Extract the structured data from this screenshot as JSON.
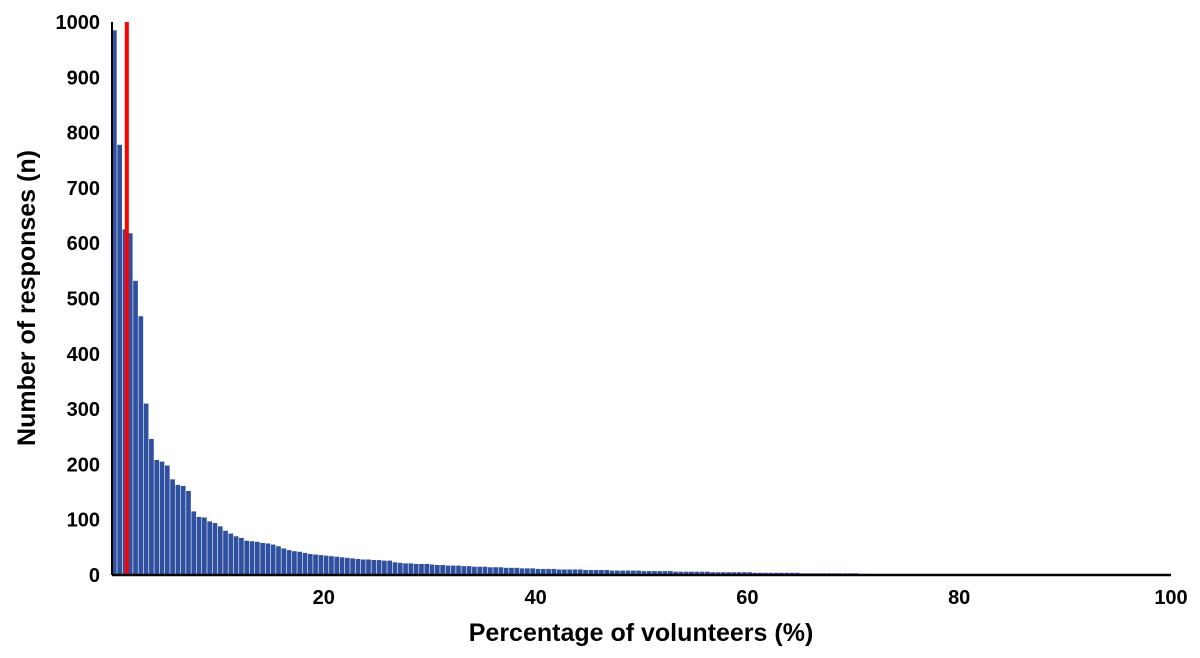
{
  "chart_data": {
    "type": "bar",
    "title": "",
    "xlabel": "Percentage of volunteers (%)",
    "ylabel": "Number of responses (n)",
    "xlim": [
      0,
      100
    ],
    "ylim": [
      0,
      1000
    ],
    "x_ticks": [
      20,
      40,
      60,
      80,
      100
    ],
    "y_ticks": [
      0,
      100,
      200,
      300,
      400,
      500,
      600,
      700,
      800,
      900,
      1000
    ],
    "grid": false,
    "legend": "none",
    "colors": {
      "bars": "#2f4f9f",
      "marker": "#ff0000",
      "axis": "#000000"
    },
    "series": [
      {
        "x": [
          0.25,
          0.75,
          1.25,
          1.75,
          2.25,
          2.75,
          3.25,
          3.75,
          4.25,
          4.75,
          5.25,
          5.75,
          6.25,
          6.75,
          7.25,
          7.75,
          8.25,
          8.75,
          9.25,
          9.75,
          10.25,
          10.75,
          11.25,
          11.75,
          12.25,
          12.75,
          13.25,
          13.75,
          14.25,
          14.75,
          15.25,
          15.75,
          16.25,
          16.75,
          17.25,
          17.75,
          18.25,
          18.75,
          19.25,
          19.75,
          20.25,
          20.75,
          21.25,
          21.75,
          22.25,
          22.75,
          23.25,
          23.75,
          24.25,
          24.75,
          25.25,
          25.75,
          26.25,
          26.75,
          27.25,
          27.75,
          28.25,
          28.75,
          29.25,
          29.75,
          30.25,
          30.75,
          31.25,
          31.75,
          32.25,
          32.75,
          33.25,
          33.75,
          34.25,
          34.75,
          35.25,
          35.75,
          36.25,
          36.75,
          37.25,
          37.75,
          38.25,
          38.75,
          39.25,
          39.75,
          40.25,
          40.75,
          41.25,
          41.75,
          42.25,
          42.75,
          43.25,
          43.75,
          44.25,
          44.75,
          45.25,
          45.75,
          46.25,
          46.75,
          47.25,
          47.75,
          48.25,
          48.75,
          49.25,
          49.75,
          50.25,
          50.75,
          51.25,
          51.75,
          52.25,
          52.75,
          53.25,
          53.75,
          54.25,
          54.75,
          55.25,
          55.75,
          56.25,
          56.75,
          57.25,
          57.75,
          58.25,
          58.75,
          59.25,
          59.75,
          60.25,
          60.75,
          61.25,
          61.75,
          62.25,
          62.75,
          63.25,
          63.75,
          64.25,
          64.75,
          65.25,
          65.75,
          66.25,
          66.75,
          67.25,
          67.75,
          68.25,
          68.75,
          69.25,
          69.75,
          70.25,
          70.75,
          71.25
        ],
        "values": [
          985,
          778,
          625,
          618,
          532,
          468,
          310,
          246,
          208,
          205,
          198,
          173,
          163,
          161,
          152,
          115,
          105,
          104,
          97,
          94,
          88,
          80,
          75,
          70,
          67,
          62,
          61,
          60,
          58,
          57,
          55,
          52,
          48,
          45,
          43,
          42,
          40,
          38,
          37,
          36,
          35,
          34,
          33,
          32,
          31,
          30,
          29,
          28,
          28,
          27,
          27,
          26,
          26,
          23,
          22,
          21,
          21,
          20,
          20,
          20,
          19,
          18,
          18,
          17,
          17,
          17,
          16,
          16,
          15,
          15,
          15,
          14,
          14,
          14,
          13,
          13,
          13,
          12,
          12,
          12,
          11,
          11,
          11,
          11,
          10,
          10,
          10,
          10,
          10,
          9,
          9,
          9,
          9,
          9,
          8,
          8,
          8,
          8,
          8,
          8,
          7,
          7,
          7,
          7,
          7,
          7,
          6,
          6,
          6,
          6,
          6,
          6,
          6,
          5,
          5,
          5,
          5,
          5,
          5,
          5,
          5,
          4,
          4,
          4,
          4,
          4,
          4,
          4,
          4,
          4,
          3,
          3,
          3,
          3,
          3,
          3,
          3,
          3,
          3,
          3,
          3,
          2,
          2
        ]
      }
    ],
    "marker_line": {
      "x": 1.4,
      "y_top": 1000
    }
  }
}
